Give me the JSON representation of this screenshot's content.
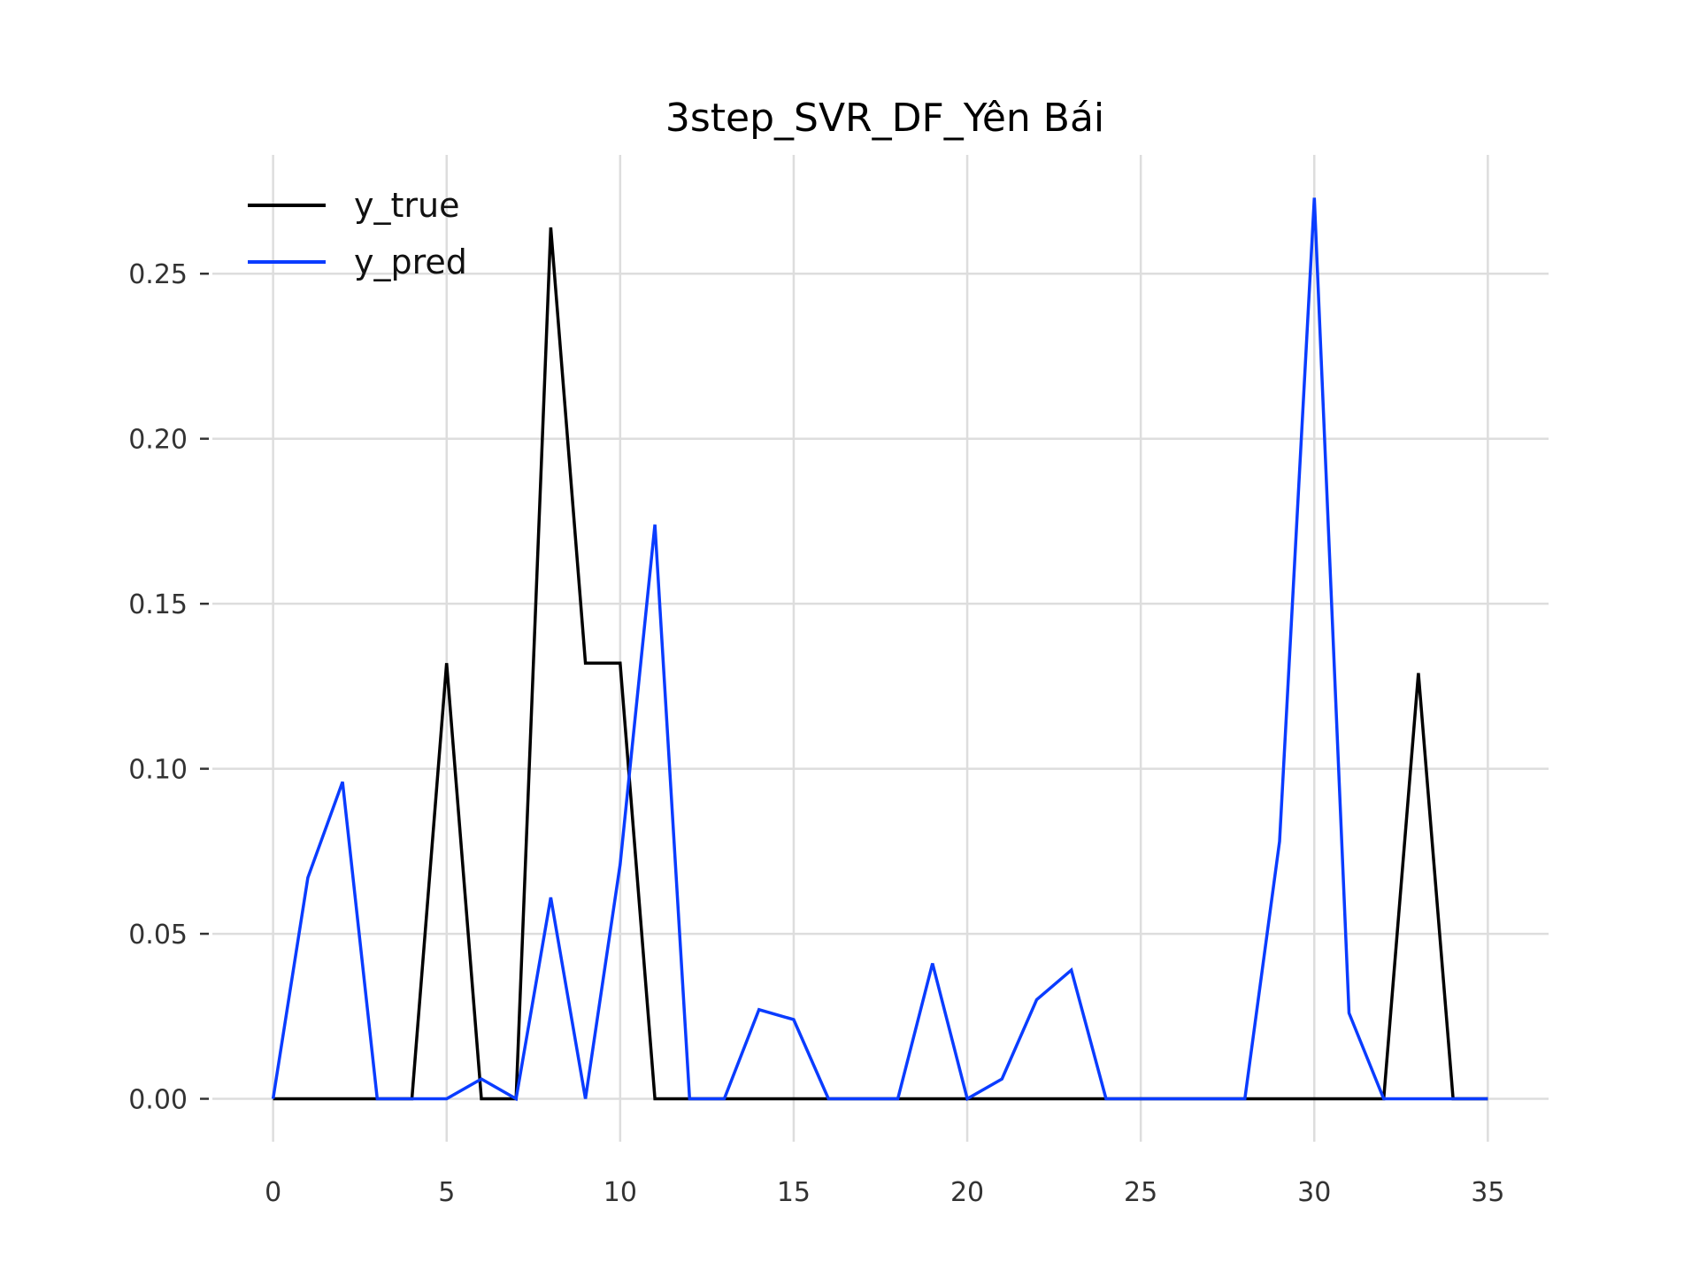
{
  "chart_data": {
    "type": "line",
    "title": "3step_SVR_DF_Yên Bái",
    "xlabel": "",
    "ylabel": "",
    "xlim": [
      -1.75,
      36.75
    ],
    "ylim": [
      -0.013,
      0.286
    ],
    "xticks": [
      0,
      5,
      10,
      15,
      20,
      25,
      30,
      35
    ],
    "xtick_labels": [
      "0",
      "5",
      "10",
      "15",
      "20",
      "25",
      "30",
      "35"
    ],
    "yticks": [
      0.0,
      0.05,
      0.1,
      0.15,
      0.2,
      0.25
    ],
    "ytick_labels": [
      "0.00",
      "0.05",
      "0.10",
      "0.15",
      "0.20",
      "0.25"
    ],
    "grid": true,
    "legend_position": "top-left",
    "x": [
      0,
      1,
      2,
      3,
      4,
      5,
      6,
      7,
      8,
      9,
      10,
      11,
      12,
      13,
      14,
      15,
      16,
      17,
      18,
      19,
      20,
      21,
      22,
      23,
      24,
      25,
      26,
      27,
      28,
      29,
      30,
      31,
      32,
      33,
      34,
      35
    ],
    "series": [
      {
        "name": "y_true",
        "color": "#000000",
        "values": [
          0,
          0,
          0,
          0,
          0,
          0.132,
          0,
          0,
          0.264,
          0.132,
          0.132,
          0,
          0,
          0,
          0,
          0,
          0,
          0,
          0,
          0,
          0,
          0,
          0,
          0,
          0,
          0,
          0,
          0,
          0,
          0,
          0,
          0,
          0,
          0.129,
          0,
          0
        ]
      },
      {
        "name": "y_pred",
        "color": "#0a3cff",
        "values": [
          0,
          0.067,
          0.096,
          0,
          0,
          0,
          0.006,
          0,
          0.061,
          0,
          0.071,
          0.174,
          0,
          0,
          0.027,
          0.024,
          0,
          0,
          0,
          0.041,
          0,
          0.006,
          0.03,
          0.039,
          0,
          0,
          0,
          0,
          0,
          0.078,
          0.273,
          0.026,
          0,
          0,
          0,
          0
        ]
      }
    ]
  }
}
